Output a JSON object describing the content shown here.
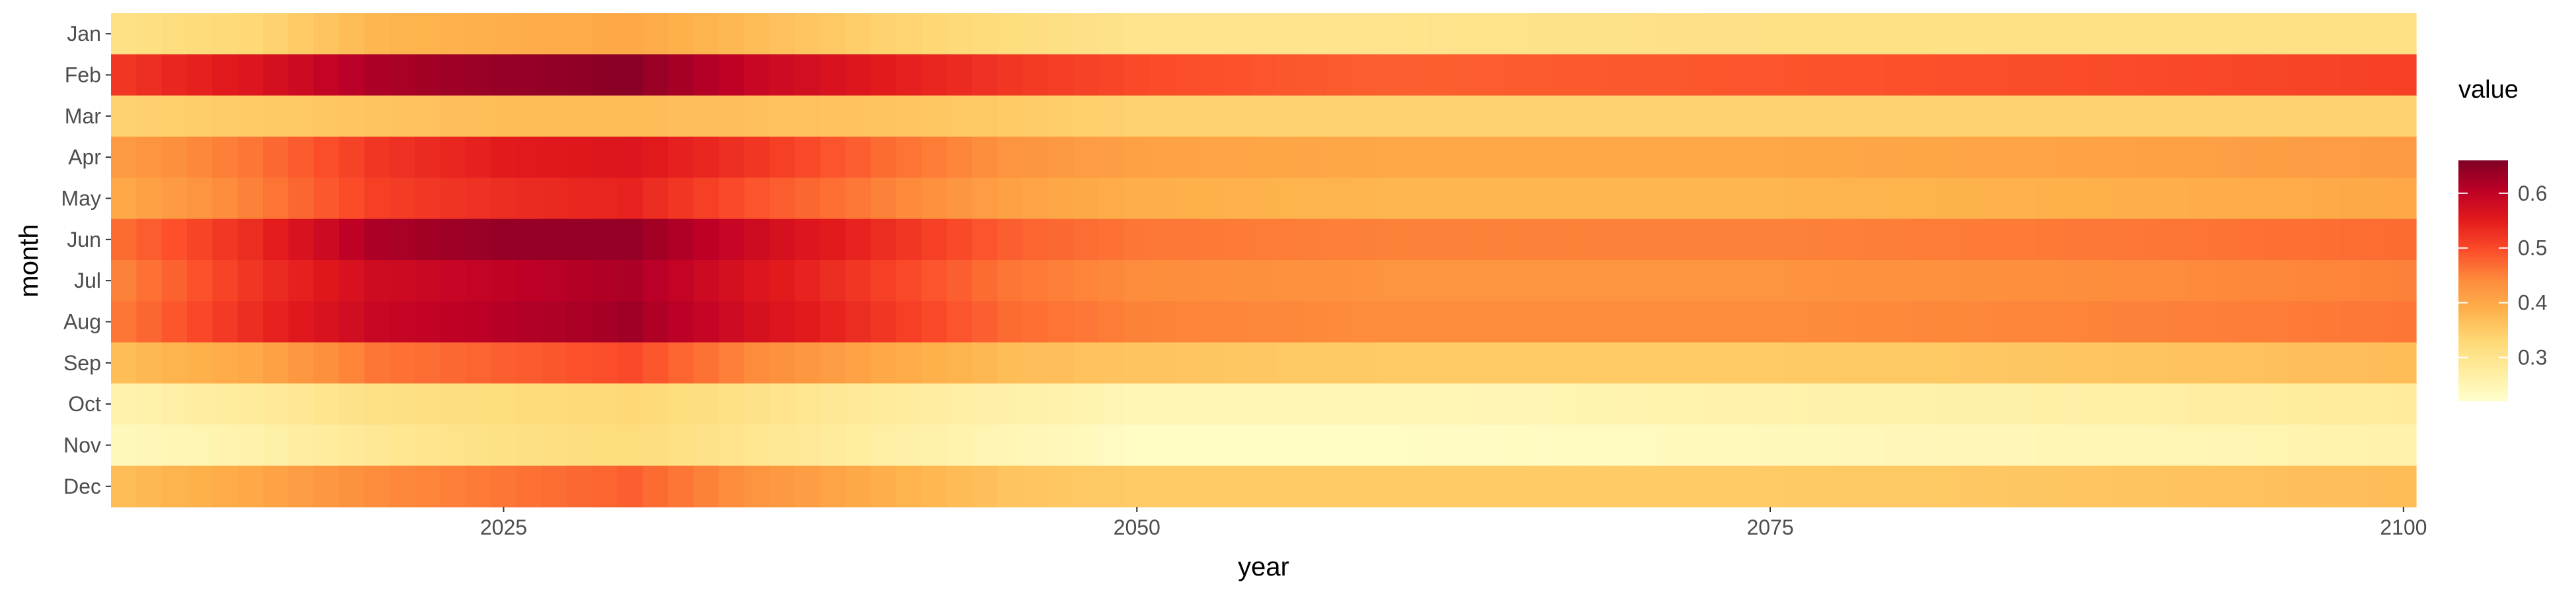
{
  "chart_data": {
    "type": "heatmap",
    "title": "",
    "xlabel": "year",
    "ylabel": "month",
    "legend_title": "value",
    "legend_position": "right",
    "x_start": 2010,
    "x_end": 2100,
    "x_ticks": [
      2025,
      2050,
      2075,
      2100
    ],
    "months": [
      "Jan",
      "Feb",
      "Mar",
      "Apr",
      "May",
      "Jun",
      "Jul",
      "Aug",
      "Sep",
      "Oct",
      "Nov",
      "Dec"
    ],
    "value_range": [
      0.22,
      0.66
    ],
    "legend_ticks": [
      0.3,
      0.4,
      0.5,
      0.6
    ],
    "colormap": [
      "#ffffcc",
      "#ffeda0",
      "#fed976",
      "#feb24c",
      "#fd8d3c",
      "#fc4e2a",
      "#e31a1c",
      "#bd0026",
      "#800026"
    ],
    "grid": false,
    "row_profiles": {
      "Jan": [
        [
          2010,
          0.31
        ],
        [
          2015,
          0.33
        ],
        [
          2020,
          0.38
        ],
        [
          2025,
          0.39
        ],
        [
          2030,
          0.4
        ],
        [
          2040,
          0.34
        ],
        [
          2050,
          0.3
        ],
        [
          2060,
          0.3
        ],
        [
          2075,
          0.31
        ],
        [
          2090,
          0.31
        ],
        [
          2100,
          0.31
        ]
      ],
      "Feb": [
        [
          2010,
          0.52
        ],
        [
          2015,
          0.56
        ],
        [
          2020,
          0.62
        ],
        [
          2025,
          0.64
        ],
        [
          2030,
          0.65
        ],
        [
          2035,
          0.59
        ],
        [
          2040,
          0.55
        ],
        [
          2045,
          0.52
        ],
        [
          2050,
          0.5
        ],
        [
          2060,
          0.48
        ],
        [
          2075,
          0.49
        ],
        [
          2090,
          0.5
        ],
        [
          2100,
          0.51
        ]
      ],
      "Mar": [
        [
          2010,
          0.34
        ],
        [
          2020,
          0.36
        ],
        [
          2025,
          0.37
        ],
        [
          2030,
          0.37
        ],
        [
          2040,
          0.36
        ],
        [
          2050,
          0.34
        ],
        [
          2075,
          0.34
        ],
        [
          2100,
          0.34
        ]
      ],
      "Apr": [
        [
          2010,
          0.42
        ],
        [
          2015,
          0.46
        ],
        [
          2020,
          0.52
        ],
        [
          2025,
          0.55
        ],
        [
          2030,
          0.56
        ],
        [
          2035,
          0.52
        ],
        [
          2040,
          0.47
        ],
        [
          2045,
          0.43
        ],
        [
          2050,
          0.41
        ],
        [
          2060,
          0.4
        ],
        [
          2075,
          0.4
        ],
        [
          2090,
          0.41
        ],
        [
          2100,
          0.42
        ]
      ],
      "May": [
        [
          2010,
          0.4
        ],
        [
          2015,
          0.45
        ],
        [
          2020,
          0.51
        ],
        [
          2025,
          0.53
        ],
        [
          2030,
          0.54
        ],
        [
          2035,
          0.49
        ],
        [
          2040,
          0.45
        ],
        [
          2045,
          0.41
        ],
        [
          2050,
          0.39
        ],
        [
          2060,
          0.38
        ],
        [
          2075,
          0.38
        ],
        [
          2090,
          0.39
        ],
        [
          2100,
          0.4
        ]
      ],
      "Jun": [
        [
          2010,
          0.47
        ],
        [
          2015,
          0.53
        ],
        [
          2020,
          0.62
        ],
        [
          2025,
          0.64
        ],
        [
          2030,
          0.64
        ],
        [
          2035,
          0.58
        ],
        [
          2040,
          0.53
        ],
        [
          2045,
          0.48
        ],
        [
          2050,
          0.46
        ],
        [
          2060,
          0.45
        ],
        [
          2075,
          0.45
        ],
        [
          2090,
          0.46
        ],
        [
          2100,
          0.47
        ]
      ],
      "Jul": [
        [
          2010,
          0.45
        ],
        [
          2015,
          0.52
        ],
        [
          2020,
          0.58
        ],
        [
          2025,
          0.6
        ],
        [
          2030,
          0.62
        ],
        [
          2035,
          0.56
        ],
        [
          2040,
          0.51
        ],
        [
          2045,
          0.46
        ],
        [
          2050,
          0.44
        ],
        [
          2060,
          0.43
        ],
        [
          2075,
          0.43
        ],
        [
          2090,
          0.44
        ],
        [
          2100,
          0.45
        ]
      ],
      "Aug": [
        [
          2010,
          0.46
        ],
        [
          2015,
          0.53
        ],
        [
          2020,
          0.59
        ],
        [
          2025,
          0.61
        ],
        [
          2030,
          0.63
        ],
        [
          2035,
          0.57
        ],
        [
          2040,
          0.52
        ],
        [
          2045,
          0.47
        ],
        [
          2050,
          0.45
        ],
        [
          2060,
          0.44
        ],
        [
          2075,
          0.44
        ],
        [
          2090,
          0.45
        ],
        [
          2100,
          0.46
        ]
      ],
      "Sep": [
        [
          2010,
          0.37
        ],
        [
          2015,
          0.4
        ],
        [
          2020,
          0.46
        ],
        [
          2025,
          0.48
        ],
        [
          2030,
          0.5
        ],
        [
          2035,
          0.44
        ],
        [
          2040,
          0.4
        ],
        [
          2045,
          0.37
        ],
        [
          2050,
          0.36
        ],
        [
          2060,
          0.35
        ],
        [
          2075,
          0.35
        ],
        [
          2090,
          0.36
        ],
        [
          2100,
          0.37
        ]
      ],
      "Oct": [
        [
          2010,
          0.26
        ],
        [
          2015,
          0.28
        ],
        [
          2020,
          0.31
        ],
        [
          2025,
          0.32
        ],
        [
          2030,
          0.33
        ],
        [
          2040,
          0.28
        ],
        [
          2050,
          0.25
        ],
        [
          2060,
          0.25
        ],
        [
          2075,
          0.26
        ],
        [
          2090,
          0.27
        ],
        [
          2100,
          0.28
        ]
      ],
      "Nov": [
        [
          2010,
          0.24
        ],
        [
          2015,
          0.26
        ],
        [
          2020,
          0.29
        ],
        [
          2025,
          0.31
        ],
        [
          2030,
          0.32
        ],
        [
          2040,
          0.27
        ],
        [
          2050,
          0.23
        ],
        [
          2060,
          0.23
        ],
        [
          2075,
          0.24
        ],
        [
          2090,
          0.25
        ],
        [
          2100,
          0.26
        ]
      ],
      "Dec": [
        [
          2010,
          0.37
        ],
        [
          2015,
          0.4
        ],
        [
          2020,
          0.44
        ],
        [
          2025,
          0.46
        ],
        [
          2030,
          0.48
        ],
        [
          2035,
          0.43
        ],
        [
          2040,
          0.39
        ],
        [
          2045,
          0.36
        ],
        [
          2050,
          0.35
        ],
        [
          2060,
          0.35
        ],
        [
          2075,
          0.35
        ],
        [
          2090,
          0.36
        ],
        [
          2100,
          0.37
        ]
      ]
    }
  }
}
